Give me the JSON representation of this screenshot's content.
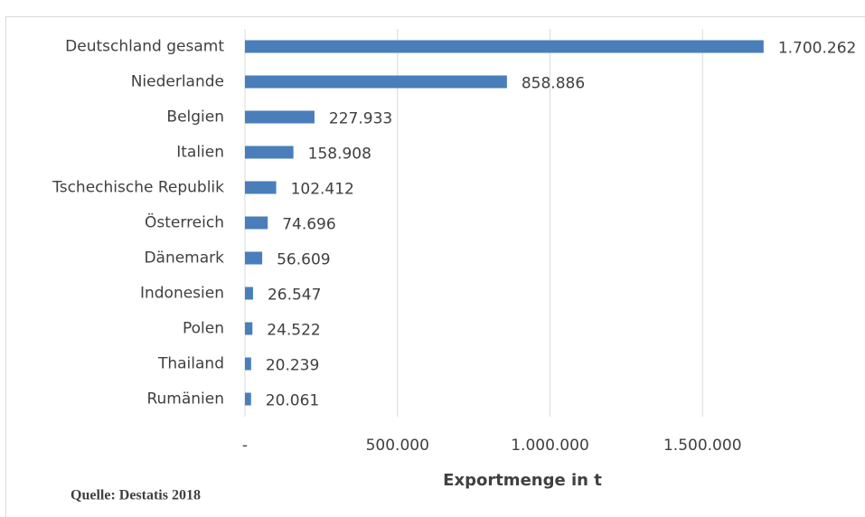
{
  "chart_data": {
    "type": "bar",
    "orientation": "horizontal",
    "categories": [
      "Deutschland gesamt",
      "Niederlande",
      "Belgien",
      "Italien",
      "Tschechische Republik",
      "Österreich",
      "Dänemark",
      "Indonesien",
      "Polen",
      "Thailand",
      "Rumänien"
    ],
    "values": [
      1700262,
      858886,
      227933,
      158908,
      102412,
      74696,
      56609,
      26547,
      24522,
      20239,
      20061
    ],
    "value_labels": [
      "1.700.262",
      "858.886",
      "227.933",
      "158.908",
      "102.412",
      "74.696",
      "56.609",
      "26.547",
      "24.522",
      "20.239",
      "20.061"
    ],
    "color": "#4a7ebb",
    "xlim": [
      0,
      2000000
    ],
    "xticks": [
      {
        "value": 0,
        "label": "-"
      },
      {
        "value": 500000,
        "label": "500.000"
      },
      {
        "value": 1000000,
        "label": "1.000.000"
      },
      {
        "value": 1500000,
        "label": "1.500.000"
      }
    ],
    "grid": true,
    "xlabel": "Exportmenge in t",
    "source": "Quelle: Destatis 2018"
  }
}
